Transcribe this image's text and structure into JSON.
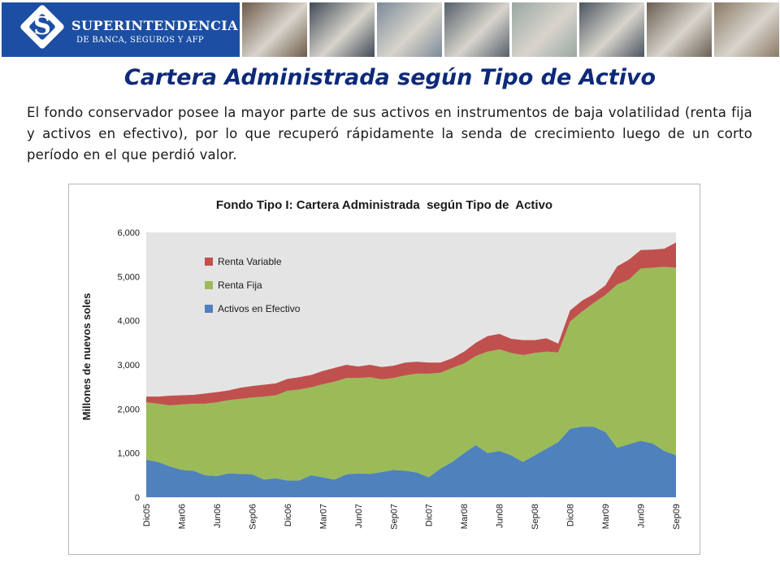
{
  "header": {
    "logo_title": "SUPERINTENDENCIA",
    "logo_subtitle": "DE BANCA, SEGUROS Y AFP",
    "photos": [
      "cards-photo",
      "building-photo",
      "keyboard-enter-photo",
      "handshake-photo",
      "documents-photo",
      "card-terminal-photo",
      "meeting-photo",
      "businessman-photo",
      "signing-photo"
    ]
  },
  "slide": {
    "title": "Cartera Administrada según Tipo de Activo",
    "body": "El fondo conservador posee la mayor parte de sus activos en instrumentos de baja volatilidad (renta fija y activos en efectivo), por lo que recuperó rápidamente la senda de crecimiento luego de un corto período en el que perdió valor."
  },
  "chart_data": {
    "type": "area",
    "stacked": true,
    "title": "Fondo Tipo I: Cartera Administrada  según Tipo de  Activo",
    "xlabel": "",
    "ylabel": "Millones de nuevos soles",
    "ylim": [
      0,
      6000
    ],
    "yticks": [
      "0",
      "1,000",
      "2,000",
      "3,000",
      "4,000",
      "5,000",
      "6,000"
    ],
    "x_tick_labels": [
      "Dic05",
      "Mar06",
      "Jun06",
      "Sep06",
      "Dic06",
      "Mar07",
      "Jun07",
      "Sep07",
      "Dic07",
      "Mar08",
      "Jun08",
      "Sep08",
      "Dic08",
      "Mar09",
      "Jun09",
      "Sep09"
    ],
    "x": [
      "Dic05",
      "Ene06",
      "Feb06",
      "Mar06",
      "Abr06",
      "May06",
      "Jun06",
      "Jul06",
      "Ago06",
      "Sep06",
      "Oct06",
      "Nov06",
      "Dic06",
      "Ene07",
      "Feb07",
      "Mar07",
      "Abr07",
      "May07",
      "Jun07",
      "Jul07",
      "Ago07",
      "Sep07",
      "Oct07",
      "Nov07",
      "Dic07",
      "Ene08",
      "Feb08",
      "Mar08",
      "Abr08",
      "May08",
      "Jun08",
      "Jul08",
      "Ago08",
      "Sep08",
      "Oct08",
      "Nov08",
      "Dic08",
      "Ene09",
      "Feb09",
      "Mar09",
      "Abr09",
      "May09",
      "Jun09",
      "Jul09",
      "Ago09",
      "Sep09"
    ],
    "legend_position": "top-left",
    "grid": false,
    "series": [
      {
        "name": "Activos en Efectivo",
        "color": "#4f81bd",
        "values": [
          850,
          800,
          700,
          620,
          600,
          500,
          480,
          540,
          530,
          520,
          400,
          430,
          380,
          380,
          500,
          450,
          400,
          520,
          540,
          530,
          570,
          620,
          600,
          560,
          450,
          650,
          800,
          1000,
          1180,
          1000,
          1050,
          950,
          800,
          950,
          1100,
          1250,
          1550,
          1600,
          1600,
          1480,
          1120,
          1200,
          1280,
          1220,
          1050,
          950
        ]
      },
      {
        "name": "Renta Fija",
        "color": "#9bbb59",
        "values": [
          1300,
          1320,
          1380,
          1480,
          1520,
          1620,
          1670,
          1660,
          1700,
          1740,
          1880,
          1880,
          2030,
          2060,
          1990,
          2110,
          2220,
          2180,
          2160,
          2190,
          2100,
          2080,
          2160,
          2240,
          2350,
          2170,
          2130,
          2030,
          2020,
          2300,
          2300,
          2320,
          2420,
          2320,
          2200,
          2030,
          2430,
          2600,
          2800,
          3100,
          3700,
          3730,
          3900,
          3980,
          4170,
          4250
        ]
      },
      {
        "name": "Renta Variable",
        "color": "#c0504d",
        "values": [
          130,
          160,
          220,
          210,
          200,
          230,
          230,
          220,
          250,
          260,
          270,
          270,
          270,
          280,
          280,
          300,
          310,
          300,
          260,
          280,
          280,
          280,
          290,
          270,
          250,
          230,
          220,
          270,
          300,
          350,
          350,
          320,
          340,
          290,
          300,
          200,
          250,
          250,
          200,
          220,
          410,
          450,
          420,
          410,
          410,
          570
        ]
      }
    ]
  }
}
